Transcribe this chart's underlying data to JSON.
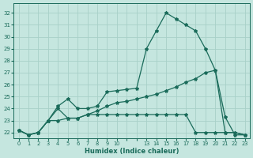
{
  "xlabel": "Humidex (Indice chaleur)",
  "background_color": "#c5e6df",
  "grid_color": "#a8d0c8",
  "line_color": "#1a6b5a",
  "xtick_labels": [
    "0",
    "1",
    "2",
    "3",
    "4",
    "5",
    "6",
    "7",
    "8",
    "9",
    "10",
    "",
    "",
    "13",
    "14",
    "15",
    "16",
    "17",
    "18",
    "19",
    "20",
    "21",
    "22",
    "23"
  ],
  "ytick_vals": [
    22,
    23,
    24,
    25,
    26,
    27,
    28,
    29,
    30,
    31,
    32
  ],
  "ylim": [
    21.5,
    32.8
  ],
  "line1_y": [
    22.2,
    21.8,
    22.0,
    23.0,
    24.2,
    24.8,
    24.0,
    24.0,
    24.2,
    25.4,
    25.5,
    25.6,
    25.7,
    29.0,
    30.5,
    32.0,
    31.5,
    31.0,
    30.5,
    29.0,
    27.2,
    23.3,
    21.8,
    21.8
  ],
  "line2_y": [
    22.2,
    21.8,
    22.0,
    23.0,
    24.0,
    23.2,
    23.2,
    23.5,
    23.8,
    24.2,
    24.5,
    24.6,
    24.8,
    25.0,
    25.2,
    25.5,
    25.8,
    26.2,
    26.5,
    27.0,
    27.2,
    22.0,
    22.0,
    21.8
  ],
  "line3_y": [
    22.2,
    21.8,
    22.0,
    23.0,
    23.0,
    23.2,
    23.2,
    23.5,
    23.5,
    23.5,
    23.5,
    23.5,
    23.5,
    23.5,
    23.5,
    23.5,
    23.5,
    23.5,
    22.0,
    22.0,
    22.0,
    22.0,
    22.0,
    21.8
  ]
}
